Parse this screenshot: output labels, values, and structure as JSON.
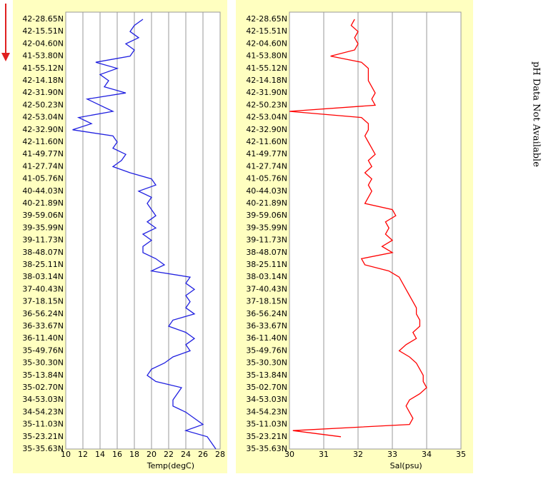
{
  "annotation": "pH Data Not Available",
  "chart_data": [
    {
      "type": "line",
      "xlabel": "Temp(degC)",
      "color": "#2020e0",
      "xlim": [
        10,
        28
      ],
      "xticks": [
        10,
        12,
        14,
        16,
        18,
        20,
        22,
        24,
        26,
        28
      ],
      "grid": true,
      "categories": [
        "42-28.65N",
        null,
        "42-15.51N",
        null,
        "42-04.60N",
        null,
        "41-53.80N",
        null,
        "41-55.12N",
        null,
        "42-14.18N",
        null,
        "42-31.90N",
        null,
        "42-50.23N",
        null,
        "42-53.04N",
        null,
        "42-32.90N",
        null,
        "42-11.60N",
        null,
        "41-49.77N",
        null,
        "41-27.74N",
        null,
        "41-05.76N",
        null,
        "40-44.03N",
        null,
        "40-21.89N",
        null,
        "39-59.06N",
        null,
        "39-35.99N",
        null,
        "39-11.73N",
        null,
        "38-48.07N",
        null,
        "38-25.11N",
        null,
        "38-03.14N",
        null,
        "37-40.43N",
        null,
        "37-18.15N",
        null,
        "36-56.24N",
        null,
        "36-33.67N",
        null,
        "36-11.40N",
        null,
        "35-49.76N",
        null,
        "35-30.30N",
        null,
        "35-13.84N",
        null,
        "35-02.70N",
        null,
        "34-53.03N",
        null,
        "34-54.23N",
        null,
        "35-11.03N",
        null,
        "35-23.21N",
        null,
        "35-35.63N"
      ],
      "values": [
        19,
        18,
        17.5,
        18.5,
        17,
        18,
        17.5,
        13.5,
        16,
        14,
        15,
        14.5,
        17,
        12.5,
        14,
        15.5,
        11.5,
        13,
        10.8,
        15.5,
        16,
        15.5,
        17,
        16.5,
        15.5,
        17.5,
        20,
        20.5,
        18.5,
        20,
        19.5,
        20,
        20.5,
        19.5,
        20.5,
        19,
        20,
        19,
        19,
        20.5,
        21.5,
        20,
        24.5,
        24,
        25,
        24,
        24.5,
        24,
        25,
        22.5,
        22,
        24,
        25,
        24,
        24.5,
        22.5,
        21.5,
        20,
        19.5,
        20.5,
        23.5,
        23,
        22.5,
        22.5,
        24,
        25,
        26,
        24,
        26.5,
        27,
        27.5
      ]
    },
    {
      "type": "line",
      "xlabel": "Sal(psu)",
      "color": "#ff0000",
      "xlim": [
        30,
        35
      ],
      "xticks": [
        30,
        31,
        32,
        33,
        34,
        35
      ],
      "grid": true,
      "categories": [
        "42-28.65N",
        null,
        "42-15.51N",
        null,
        "42-04.60N",
        null,
        "41-53.80N",
        null,
        "41-55.12N",
        null,
        "42-14.18N",
        null,
        "42-31.90N",
        null,
        "42-50.23N",
        null,
        "42-53.04N",
        null,
        "42-32.90N",
        null,
        "42-11.60N",
        null,
        "41-49.77N",
        null,
        "41-27.74N",
        null,
        "41-05.76N",
        null,
        "40-44.03N",
        null,
        "40-21.89N",
        null,
        "39-59.06N",
        null,
        "39-35.99N",
        null,
        "39-11.73N",
        null,
        "38-48.07N",
        null,
        "38-25.11N",
        null,
        "38-03.14N",
        null,
        "37-40.43N",
        null,
        "37-18.15N",
        null,
        "36-56.24N",
        null,
        "36-33.67N",
        null,
        "36-11.40N",
        null,
        "35-49.76N",
        null,
        "35-30.30N",
        null,
        "35-13.84N",
        null,
        "35-02.70N",
        null,
        "34-53.03N",
        null,
        "34-54.23N",
        null,
        "35-11.03N",
        null,
        "35-23.21N",
        null,
        "35-35.63N"
      ],
      "values": [
        31.9,
        31.8,
        32,
        31.9,
        32,
        31.9,
        31.2,
        32.1,
        32.3,
        32.3,
        32.3,
        32.4,
        32.5,
        32.4,
        32.5,
        30.0,
        32.1,
        32.3,
        32.3,
        32.2,
        32.3,
        32.4,
        32.5,
        32.3,
        32.4,
        32.2,
        32.4,
        32.3,
        32.4,
        32.3,
        32.2,
        33,
        33.1,
        32.8,
        32.9,
        32.8,
        33,
        32.7,
        33,
        32.1,
        32.2,
        32.9,
        33.2,
        33.3,
        33.4,
        33.5,
        33.6,
        33.7,
        33.7,
        33.8,
        33.8,
        33.6,
        33.7,
        33.4,
        33.2,
        33.5,
        33.7,
        33.8,
        33.9,
        33.9,
        34,
        33.8,
        33.5,
        33.4,
        33.5,
        33.6,
        33.5,
        30.1,
        31.5,
        null,
        null
      ]
    }
  ]
}
